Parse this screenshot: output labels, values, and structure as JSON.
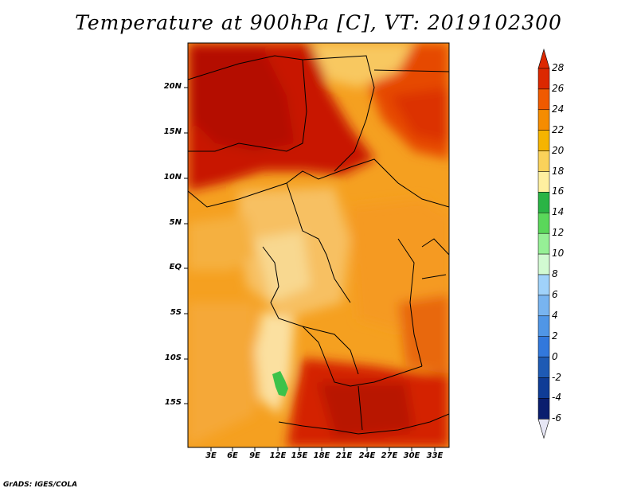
{
  "title": "Temperature at 900hPa [C], VT: 2019102300",
  "credit": "GrADS: IGES/COLA",
  "map": {
    "lat_labels": [
      "20N",
      "15N",
      "10N",
      "5N",
      "EQ",
      "5S",
      "10S",
      "15S"
    ],
    "lon_labels": [
      "3E",
      "6E",
      "9E",
      "12E",
      "15E",
      "18E",
      "21E",
      "24E",
      "27E",
      "30E",
      "33E"
    ]
  },
  "colorbar": {
    "labels": [
      "28",
      "26",
      "24",
      "22",
      "20",
      "18",
      "16",
      "14",
      "12",
      "10",
      "8",
      "6",
      "4",
      "2",
      "0",
      "-2",
      "-4",
      "-6"
    ],
    "colors": [
      "#a00000",
      "#dc2800",
      "#f05a00",
      "#f58c00",
      "#f5b400",
      "#fad25a",
      "#fff0a0",
      "#2ab445",
      "#5ad75a",
      "#96f096",
      "#d2fad2",
      "#a0d2fa",
      "#78b4f0",
      "#5096e6",
      "#3278dc",
      "#1e5ab4",
      "#0f3c96",
      "#0a1e6e"
    ],
    "top_arrow_color": "#dc2800",
    "bottom_arrow_color": "#e6e6f5"
  }
}
